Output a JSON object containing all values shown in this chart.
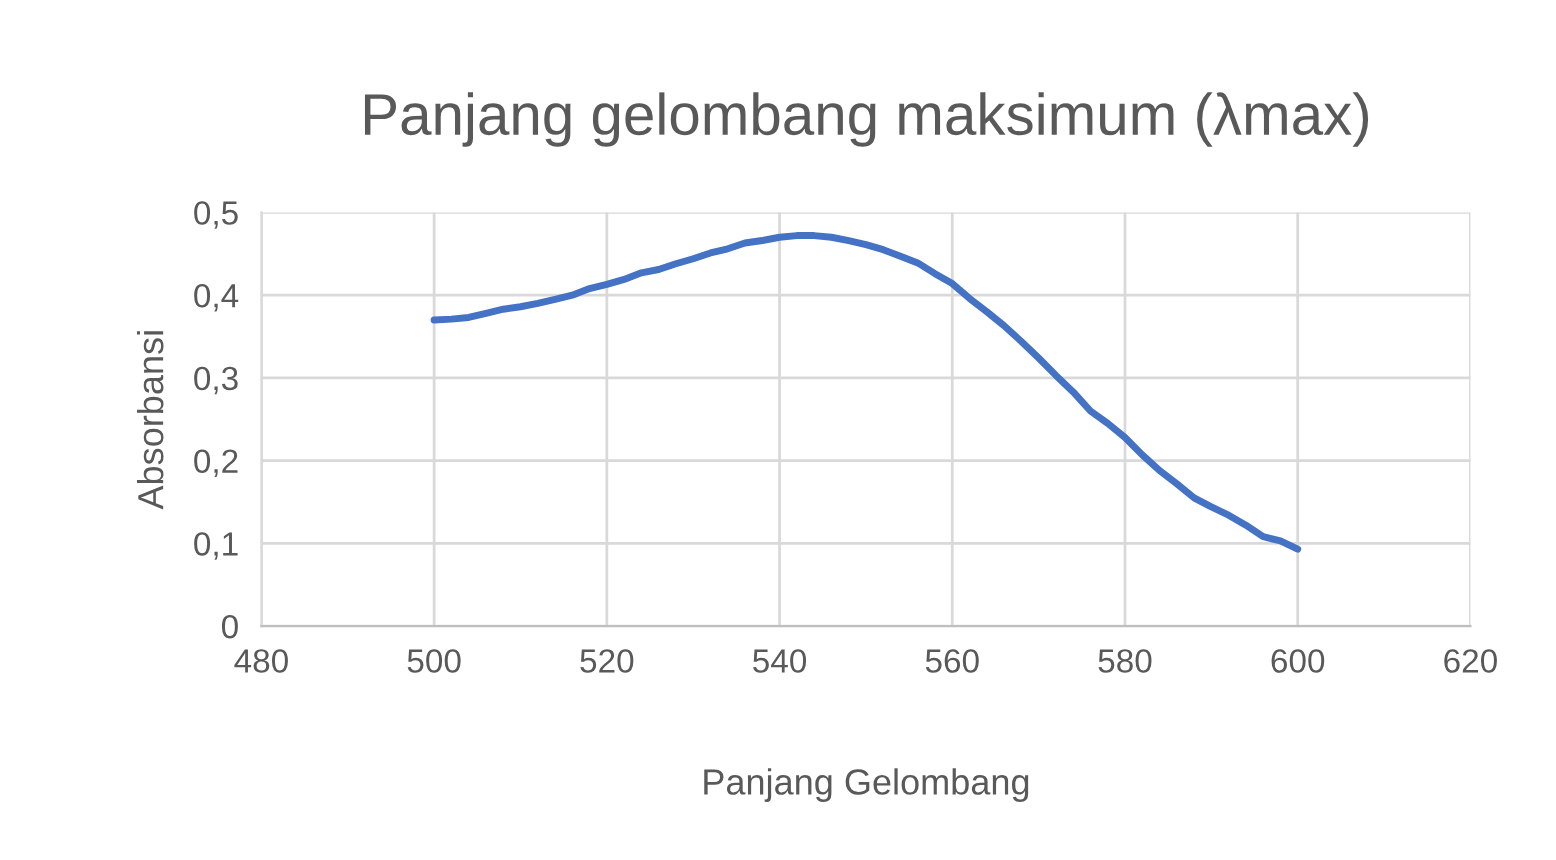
{
  "chart_data": {
    "type": "line",
    "title": "Panjang gelombang maksimum (λmax)",
    "xlabel": "Panjang Gelombang",
    "ylabel": "Absorbansi",
    "x": [
      500,
      502,
      504,
      506,
      508,
      510,
      512,
      514,
      516,
      518,
      520,
      522,
      524,
      526,
      528,
      530,
      532,
      534,
      536,
      538,
      540,
      542,
      544,
      546,
      548,
      550,
      552,
      554,
      556,
      558,
      560,
      562,
      564,
      566,
      568,
      570,
      572,
      574,
      576,
      578,
      580,
      582,
      584,
      586,
      588,
      590,
      592,
      594,
      596,
      598,
      600
    ],
    "series": [
      {
        "color": "#4472c4",
        "values": [
          0.37,
          0.371,
          0.373,
          0.378,
          0.383,
          0.386,
          0.39,
          0.395,
          0.4,
          0.408,
          0.413,
          0.419,
          0.427,
          0.431,
          0.438,
          0.444,
          0.451,
          0.456,
          0.463,
          0.466,
          0.47,
          0.472,
          0.472,
          0.47,
          0.466,
          0.461,
          0.455,
          0.447,
          0.439,
          0.426,
          0.414,
          0.396,
          0.38,
          0.363,
          0.344,
          0.324,
          0.303,
          0.283,
          0.26,
          0.245,
          0.228,
          0.207,
          0.188,
          0.172,
          0.155,
          0.144,
          0.134,
          0.122,
          0.108,
          0.103,
          0.093
        ]
      }
    ],
    "xlim": [
      480,
      620
    ],
    "xticks": [
      480,
      500,
      520,
      540,
      560,
      580,
      600,
      620
    ],
    "ylim": [
      0,
      0.5
    ],
    "yticks": [
      0,
      {
        "value": 0.1,
        "label": "0,1"
      },
      {
        "value": 0.2,
        "label": "0,2"
      },
      {
        "value": 0.3,
        "label": "0,3"
      },
      {
        "value": 0.4,
        "label": "0,4"
      },
      {
        "value": 0.5,
        "label": "0,5"
      }
    ],
    "grid": true,
    "marker": "none",
    "line_style": "solid"
  }
}
